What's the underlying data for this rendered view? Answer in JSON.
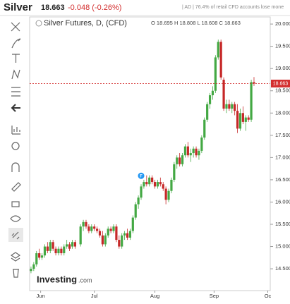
{
  "header": {
    "symbol": "Silver",
    "price": "18.663",
    "change": "-0.048 (-0.26%)",
    "notice": "| AD | 76.4% of retail CFD accounts lose mone"
  },
  "chart_data": {
    "type": "candlestick",
    "title": "Silver Futures, D, (CFD)",
    "ohlc_legend": "O 18.695 H 18.808 L 18.608 C 18.663",
    "up_color": "#43a843",
    "down_color": "#c62828",
    "x": [
      0,
      1,
      2,
      3,
      4,
      5,
      6,
      7,
      8,
      9,
      10,
      11,
      12,
      13,
      14,
      15,
      16,
      18,
      19,
      20,
      21,
      22,
      23,
      24,
      25,
      26,
      27,
      28,
      29,
      30,
      31,
      32,
      33,
      34,
      35,
      36,
      37,
      38,
      39,
      40,
      41,
      42,
      43,
      44,
      45,
      46,
      47,
      48,
      49,
      50,
      51,
      52,
      53,
      54,
      55,
      56,
      57,
      58,
      59,
      60,
      61,
      62,
      63,
      64,
      65,
      66,
      67,
      68,
      69,
      70,
      71,
      72,
      73,
      74,
      75,
      76,
      77,
      78,
      79,
      80,
      81
    ],
    "open": [
      14.45,
      14.5,
      14.6,
      14.85,
      14.75,
      14.8,
      15.0,
      14.9,
      15.1,
      14.95,
      14.85,
      14.95,
      14.85,
      15.0,
      15.05,
      15.0,
      15.1,
      15.05,
      15.45,
      15.55,
      15.45,
      15.35,
      15.45,
      15.4,
      15.35,
      15.25,
      15.05,
      15.25,
      15.4,
      15.35,
      15.45,
      15.15,
      15.0,
      15.25,
      15.3,
      15.2,
      15.35,
      15.65,
      15.95,
      16.1,
      16.35,
      16.45,
      16.4,
      16.55,
      16.45,
      16.35,
      16.45,
      16.4,
      16.3,
      16.05,
      16.25,
      16.5,
      16.85,
      17.0,
      16.85,
      17.05,
      17.25,
      17.05,
      17.1,
      17.2,
      17.05,
      17.15,
      17.45,
      17.85,
      18.2,
      18.4,
      18.5,
      19.25,
      19.6,
      18.75,
      18.1,
      18.2,
      18.1,
      18.2,
      18.05,
      17.65,
      18.0,
      17.8,
      17.9,
      17.85,
      18.695
    ],
    "high": [
      14.55,
      14.65,
      14.9,
      14.95,
      14.85,
      15.05,
      15.1,
      15.15,
      15.15,
      15.0,
      15.0,
      15.0,
      15.05,
      15.15,
      15.1,
      15.15,
      15.15,
      15.5,
      15.6,
      15.6,
      15.5,
      15.5,
      15.5,
      15.45,
      15.4,
      15.35,
      15.3,
      15.45,
      15.45,
      15.5,
      15.5,
      15.25,
      15.3,
      15.35,
      15.4,
      15.4,
      15.7,
      16.0,
      16.15,
      16.4,
      16.5,
      16.6,
      16.6,
      16.6,
      16.5,
      16.5,
      16.55,
      16.45,
      16.35,
      16.3,
      16.55,
      16.9,
      17.05,
      17.1,
      17.1,
      17.3,
      17.35,
      17.2,
      17.25,
      17.25,
      17.2,
      17.5,
      17.9,
      18.25,
      18.45,
      18.6,
      19.3,
      19.65,
      19.65,
      18.8,
      18.3,
      18.3,
      18.25,
      18.25,
      18.2,
      18.1,
      18.15,
      17.95,
      17.95,
      18.75,
      18.808
    ],
    "low": [
      14.4,
      14.45,
      14.55,
      14.7,
      14.7,
      14.75,
      14.85,
      14.85,
      14.9,
      14.8,
      14.8,
      14.8,
      14.8,
      14.95,
      14.9,
      14.95,
      14.95,
      15.0,
      15.35,
      15.4,
      15.3,
      15.3,
      15.35,
      15.3,
      15.2,
      15.0,
      15.0,
      15.2,
      15.3,
      15.3,
      15.1,
      14.95,
      14.95,
      15.15,
      15.15,
      15.15,
      15.3,
      15.6,
      15.85,
      16.05,
      16.3,
      16.35,
      16.35,
      16.4,
      16.3,
      16.3,
      16.35,
      16.25,
      15.95,
      16.0,
      16.2,
      16.45,
      16.75,
      16.8,
      16.8,
      17.0,
      17.0,
      16.9,
      17.0,
      17.0,
      16.95,
      17.1,
      17.4,
      17.8,
      18.1,
      18.3,
      18.45,
      19.2,
      18.75,
      18.05,
      18.0,
      18.05,
      18.0,
      17.95,
      17.55,
      17.6,
      17.75,
      17.6,
      17.8,
      17.8,
      18.608
    ],
    "close": [
      14.5,
      14.6,
      14.85,
      14.75,
      14.8,
      15.0,
      14.9,
      15.1,
      14.95,
      14.85,
      14.95,
      14.85,
      15.0,
      15.05,
      14.95,
      15.1,
      15.0,
      15.45,
      15.55,
      15.45,
      15.35,
      15.45,
      15.4,
      15.35,
      15.25,
      15.05,
      15.25,
      15.4,
      15.35,
      15.45,
      15.15,
      15.0,
      15.25,
      15.3,
      15.2,
      15.35,
      15.65,
      15.95,
      16.1,
      16.35,
      16.45,
      16.4,
      16.55,
      16.45,
      16.35,
      16.45,
      16.4,
      16.3,
      16.05,
      16.25,
      16.5,
      16.85,
      17.0,
      16.85,
      17.05,
      17.25,
      17.05,
      17.1,
      17.2,
      17.05,
      17.15,
      17.45,
      17.85,
      18.2,
      18.4,
      18.5,
      19.25,
      19.6,
      18.8,
      18.1,
      18.2,
      18.1,
      18.2,
      18.05,
      17.65,
      18.0,
      17.8,
      17.9,
      17.85,
      18.695,
      18.663
    ],
    "xlim": [
      -0.5,
      86.9
    ],
    "xticks": [
      {
        "value": 3.5,
        "label": "Jun"
      },
      {
        "value": 23,
        "label": "Jul"
      },
      {
        "value": 45,
        "label": "Aug"
      },
      {
        "value": 66.5,
        "label": "Sep"
      },
      {
        "value": 86,
        "label": "Oc"
      }
    ],
    "ylim": [
      14.01,
      20.16
    ],
    "yticks": [
      {
        "value": 14.5,
        "label": "14.500"
      },
      {
        "value": 15,
        "label": "15.000"
      },
      {
        "value": 15.5,
        "label": "15.500"
      },
      {
        "value": 16,
        "label": "16.000"
      },
      {
        "value": 16.5,
        "label": "16.500"
      },
      {
        "value": 17,
        "label": "17.000"
      },
      {
        "value": 17.5,
        "label": "17.500"
      },
      {
        "value": 18,
        "label": "18.000"
      },
      {
        "value": 18.5,
        "label": "18.500"
      },
      {
        "value": 19,
        "label": "19.000"
      },
      {
        "value": 19.5,
        "label": "19.500"
      },
      {
        "value": 20,
        "label": "20.000"
      }
    ],
    "price_line": {
      "value": 18.663,
      "label": "18.663",
      "color": "#d32f2f"
    },
    "annotation": {
      "x": 40,
      "text": "F",
      "color": "#2196f3"
    },
    "watermark": {
      "brand": "Investing",
      "suffix": ".com"
    }
  }
}
